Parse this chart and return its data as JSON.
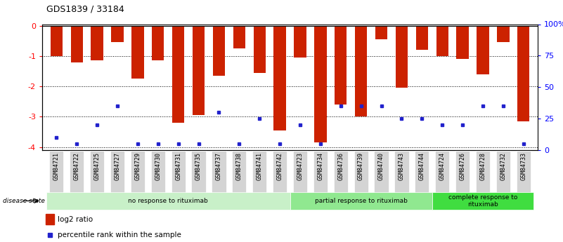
{
  "title": "GDS1839 / 33184",
  "samples": [
    "GSM84721",
    "GSM84722",
    "GSM84725",
    "GSM84727",
    "GSM84729",
    "GSM84730",
    "GSM84731",
    "GSM84735",
    "GSM84737",
    "GSM84738",
    "GSM84741",
    "GSM84742",
    "GSM84723",
    "GSM84734",
    "GSM84736",
    "GSM84739",
    "GSM84740",
    "GSM84743",
    "GSM84744",
    "GSM84724",
    "GSM84726",
    "GSM84728",
    "GSM84732",
    "GSM84733"
  ],
  "log2_ratios": [
    -1.0,
    -1.2,
    -1.15,
    -0.55,
    -1.75,
    -1.13,
    -3.2,
    -2.95,
    -1.65,
    -0.75,
    -1.55,
    -3.45,
    -1.05,
    -3.85,
    -2.6,
    -3.0,
    -0.45,
    -2.05,
    -0.8,
    -1.0,
    -1.1,
    -1.6,
    -0.55,
    -3.15
  ],
  "percentile_ranks": [
    10,
    5,
    20,
    35,
    5,
    5,
    5,
    5,
    30,
    5,
    25,
    5,
    20,
    5,
    35,
    35,
    35,
    25,
    25,
    20,
    20,
    35,
    35,
    5
  ],
  "groups": [
    {
      "label": "no response to rituximab",
      "start": 0,
      "end": 12,
      "color": "#c8f0c8"
    },
    {
      "label": "partial response to rituximab",
      "start": 12,
      "end": 19,
      "color": "#90e890"
    },
    {
      "label": "complete response to\nrituximab",
      "start": 19,
      "end": 24,
      "color": "#40dd40"
    }
  ],
  "bar_color": "#cc2200",
  "blue_color": "#2222cc",
  "ylim_left": [
    -4.1,
    0.05
  ],
  "ylim_right": [
    0,
    100
  ],
  "yticks_left": [
    -4,
    -3,
    -2,
    -1,
    0
  ],
  "yticks_right": [
    0,
    25,
    50,
    75,
    100
  ],
  "ytick_labels_right": [
    "0",
    "25",
    "50",
    "75",
    "100%"
  ],
  "ytick_labels_left": [
    "-4",
    "-3",
    "-2",
    "-1",
    "0"
  ]
}
